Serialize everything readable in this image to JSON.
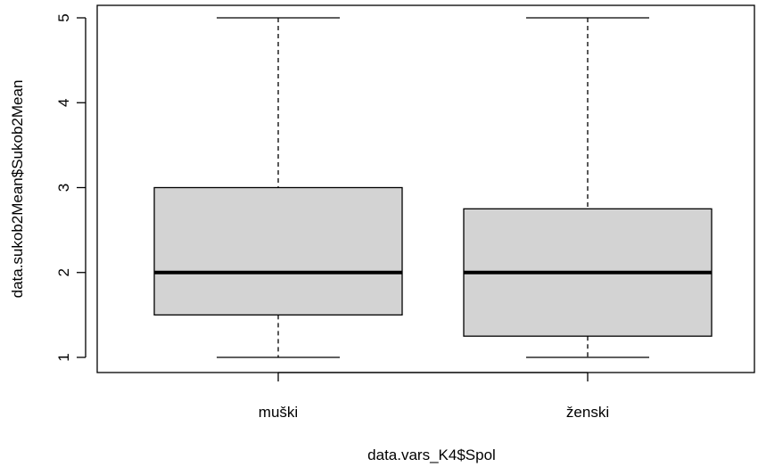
{
  "chart_data": {
    "type": "boxplot",
    "title": "",
    "xlabel": "data.vars_K4$Spol",
    "ylabel": "data.sukob2Mean$Sukob2Mean",
    "categories": [
      "muški",
      "ženski"
    ],
    "boxes": [
      {
        "category": "muški",
        "min": 1,
        "q1": 1.5,
        "median": 2,
        "q3": 3,
        "max": 5
      },
      {
        "category": "ženski",
        "min": 1,
        "q1": 1.25,
        "median": 2,
        "q3": 2.75,
        "max": 5
      }
    ],
    "ylim": [
      0.8,
      5.15
    ],
    "yticks": [
      "1",
      "2",
      "3",
      "4",
      "5"
    ],
    "box_fill": "#d3d3d3",
    "grid": false
  }
}
